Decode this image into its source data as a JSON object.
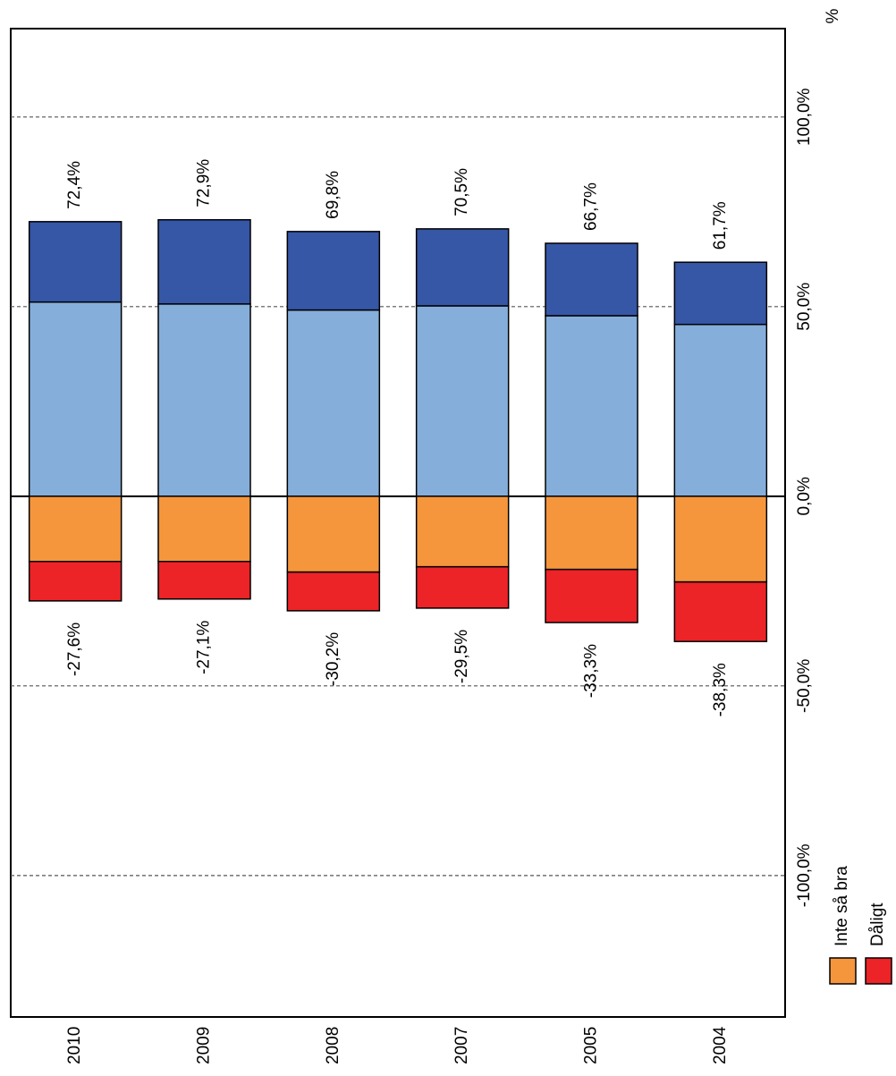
{
  "chart_data": {
    "type": "diverging-stacked-bar",
    "axis_label": "%",
    "categories": [
      "2010",
      "2009",
      "2008",
      "2007",
      "2005",
      "2004"
    ],
    "series": [
      {
        "color": "#85aedb",
        "values": [
          51.2,
          50.7,
          49.1,
          50.2,
          47.6,
          45.3
        ]
      },
      {
        "color": "#3656a6",
        "values": [
          21.2,
          22.2,
          20.7,
          20.3,
          19.1,
          16.4
        ]
      },
      {
        "name": "Inte så bra",
        "color": "#f5963c",
        "values": [
          -17.2,
          -17.2,
          -20.0,
          -18.6,
          -19.3,
          -22.6
        ]
      },
      {
        "name": "Dåligt",
        "color": "#ec2327",
        "values": [
          -10.4,
          -9.9,
          -10.2,
          -10.9,
          -14.0,
          -15.7
        ]
      }
    ],
    "positive_totals": {
      "values": [
        72.4,
        72.9,
        69.8,
        70.5,
        66.7,
        61.7
      ],
      "value_labels": [
        "72,4%",
        "72,9%",
        "69,8%",
        "70,5%",
        "66,7%",
        "61,7%"
      ]
    },
    "negative_totals": {
      "values": [
        -27.6,
        -27.1,
        -30.2,
        -29.5,
        -33.3,
        -38.3
      ],
      "value_labels": [
        "-27,6%",
        "-27,1%",
        "-30,2%",
        "-29,5%",
        "-33,3%",
        "-38,3%"
      ]
    },
    "ylim": [
      -137.3,
      123.3
    ],
    "yticks": [
      {
        "value": -100,
        "label": "-100,0%"
      },
      {
        "value": -50,
        "label": "-50,0%"
      },
      {
        "value": 0,
        "label": "0,0%"
      },
      {
        "value": 50,
        "label": "50,0%"
      },
      {
        "value": 100,
        "label": "100,0%"
      }
    ],
    "grid": true
  }
}
